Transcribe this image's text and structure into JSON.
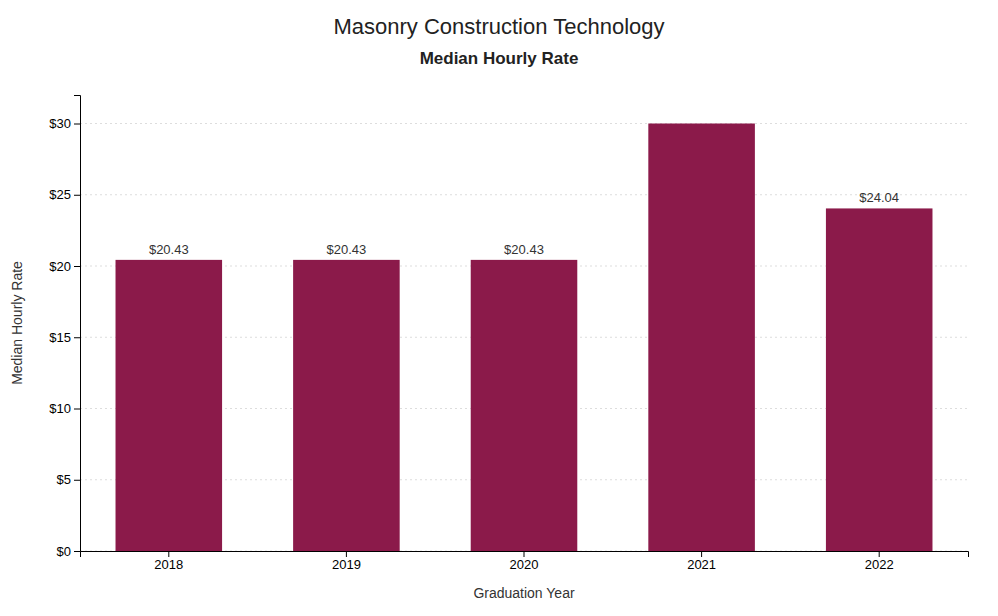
{
  "chart_data": {
    "type": "bar",
    "title": "Masonry Construction Technology",
    "subtitle": "Median Hourly Rate",
    "x_label": "Graduation Year",
    "y_label": "Median Hourly Rate",
    "categories": [
      "2018",
      "2019",
      "2020",
      "2021",
      "2022"
    ],
    "values": [
      20.43,
      20.43,
      20.43,
      30.0,
      24.04
    ],
    "data_labels": true,
    "value_labels": [
      "$20.43",
      "$20.43",
      "$20.43",
      null,
      "$24.04"
    ],
    "color": "#8B1A4A",
    "ylim": [
      0,
      32
    ],
    "yticks": [
      {
        "value": 0,
        "label": "$0"
      },
      {
        "value": 5,
        "label": "$5"
      },
      {
        "value": 10,
        "label": "$10"
      },
      {
        "value": 15,
        "label": "$15"
      },
      {
        "value": 20,
        "label": "$20"
      },
      {
        "value": 25,
        "label": "$25"
      },
      {
        "value": 30,
        "label": "$30"
      }
    ],
    "grid": true
  }
}
